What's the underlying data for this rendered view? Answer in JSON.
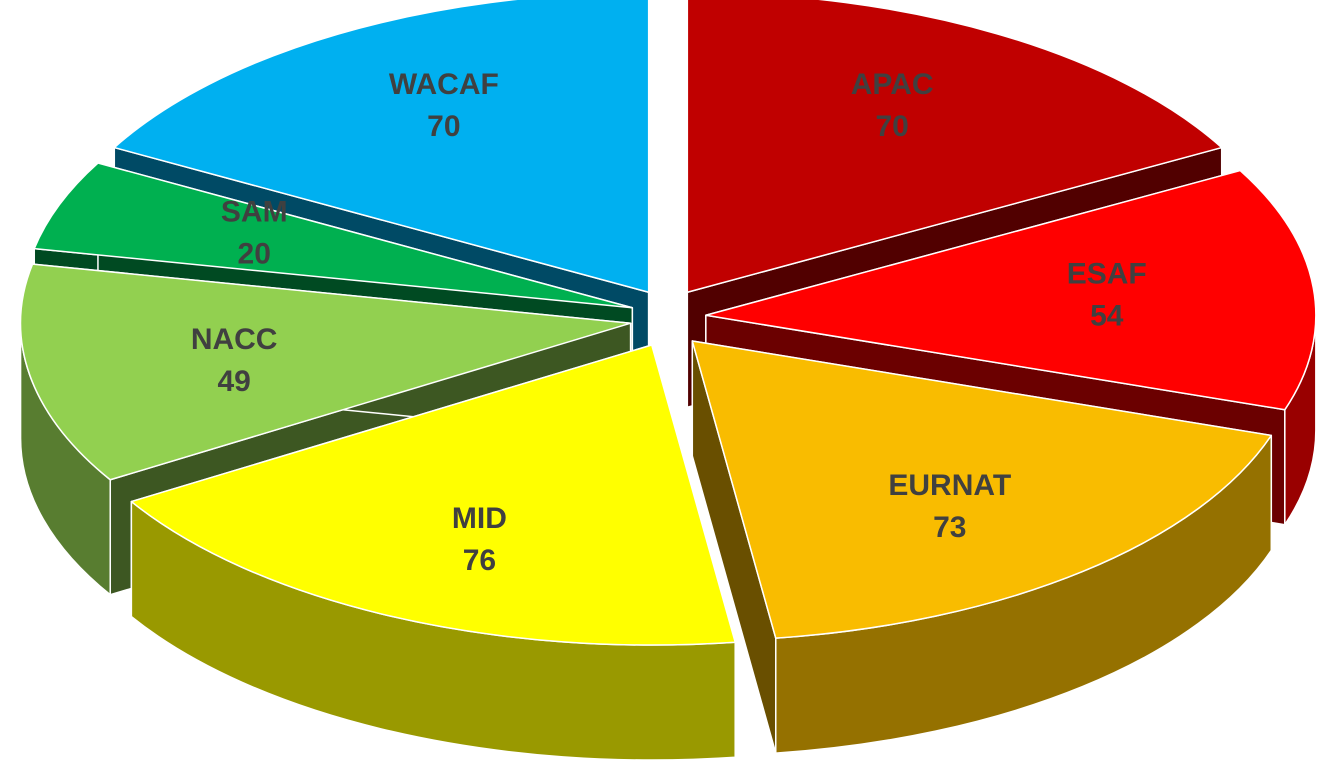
{
  "chart_data": {
    "type": "pie",
    "categories": [
      "APAC",
      "ESAF",
      "EURNAT",
      "MID",
      "NACC",
      "SAM",
      "WACAF"
    ],
    "values": [
      70,
      54,
      73,
      76,
      49,
      20,
      70
    ],
    "colors": [
      "#c00000",
      "#ff0000",
      "#f9bc00",
      "#ffff00",
      "#92d050",
      "#00b050",
      "#00b0f0"
    ]
  }
}
